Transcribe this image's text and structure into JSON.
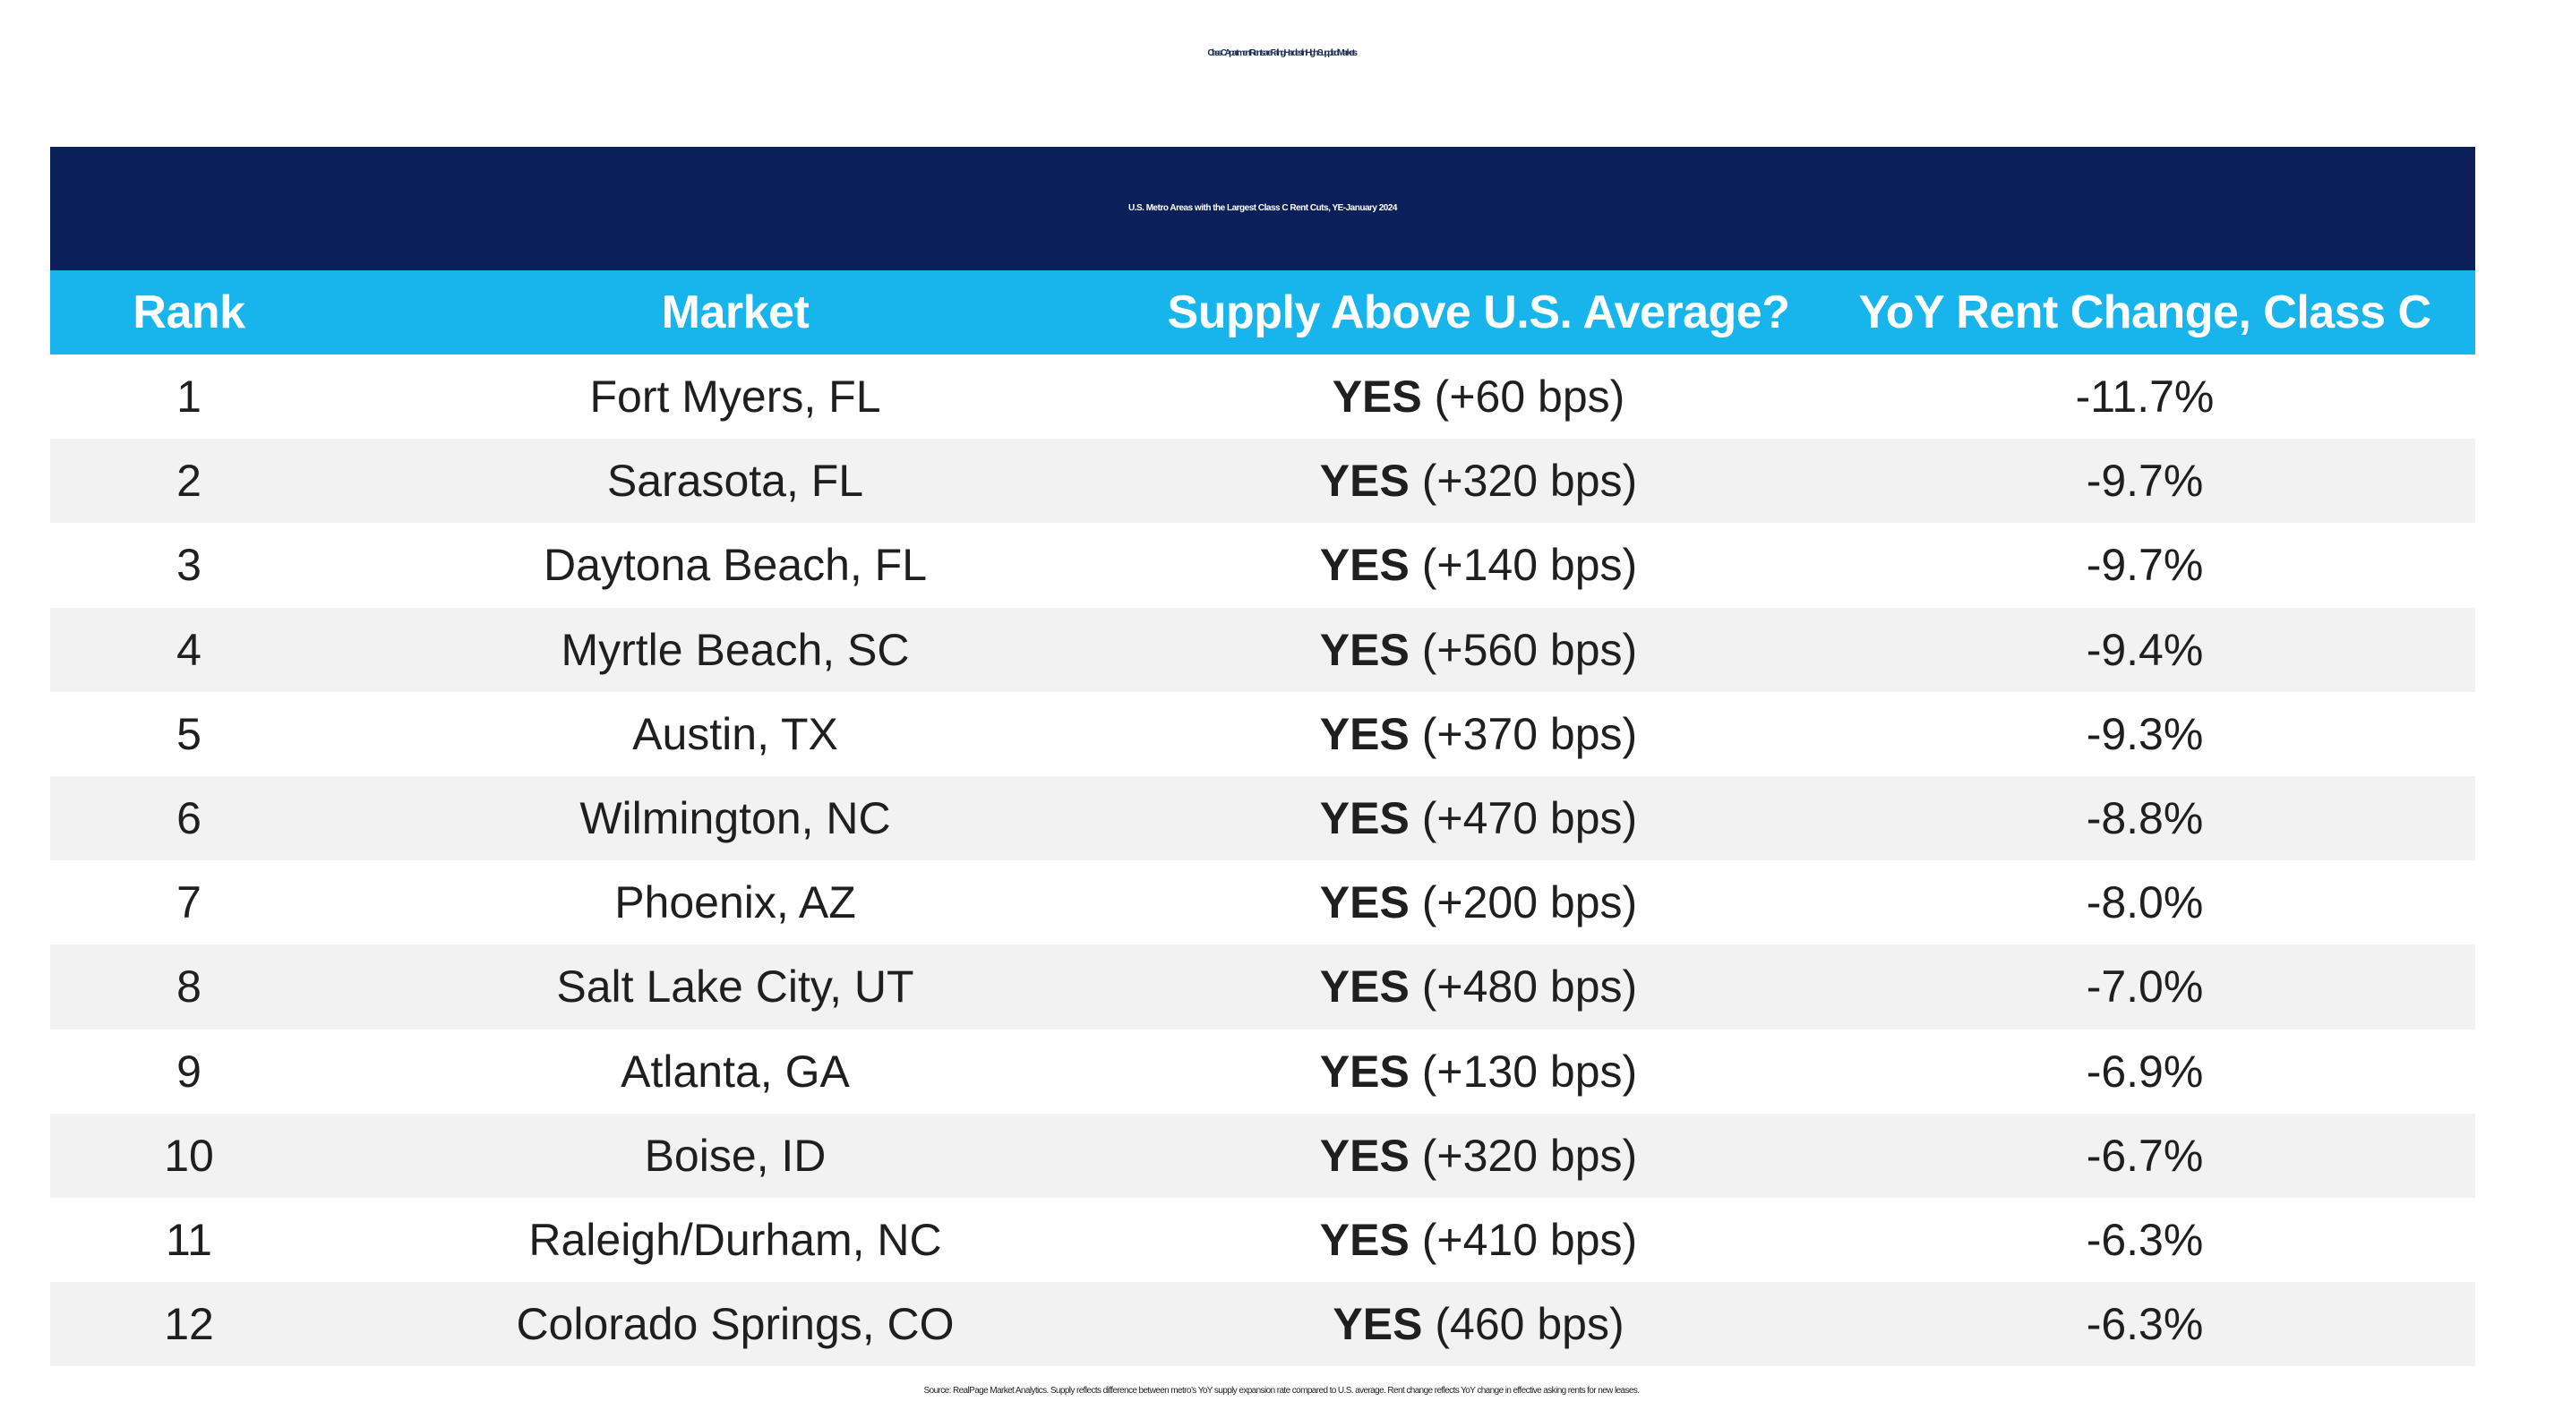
{
  "chart_data": {
    "type": "table",
    "title": "Class C Apartment Rents are Falling Hardest in High-Supplied Markets",
    "subtitle": "U.S. Metro Areas with the Largest Class C Rent Cuts, YE-January 2024",
    "columns": [
      "Rank",
      "Market",
      "Supply Above U.S. Average?",
      "YoY Rent Change, Class C"
    ],
    "rows": [
      {
        "rank": "1",
        "market": "Fort Myers, FL",
        "supply_flag": "YES",
        "supply_detail": "(+60 bps)",
        "change": "-11.7%"
      },
      {
        "rank": "2",
        "market": "Sarasota, FL",
        "supply_flag": "YES",
        "supply_detail": "(+320 bps)",
        "change": "-9.7%"
      },
      {
        "rank": "3",
        "market": "Daytona Beach, FL",
        "supply_flag": "YES",
        "supply_detail": "(+140 bps)",
        "change": "-9.7%"
      },
      {
        "rank": "4",
        "market": "Myrtle Beach, SC",
        "supply_flag": "YES",
        "supply_detail": "(+560 bps)",
        "change": "-9.4%"
      },
      {
        "rank": "5",
        "market": "Austin, TX",
        "supply_flag": "YES",
        "supply_detail": "(+370 bps)",
        "change": "-9.3%"
      },
      {
        "rank": "6",
        "market": "Wilmington, NC",
        "supply_flag": "YES",
        "supply_detail": "(+470 bps)",
        "change": "-8.8%"
      },
      {
        "rank": "7",
        "market": "Phoenix, AZ",
        "supply_flag": "YES",
        "supply_detail": "(+200 bps)",
        "change": "-8.0%"
      },
      {
        "rank": "8",
        "market": "Salt Lake City, UT",
        "supply_flag": "YES",
        "supply_detail": "(+480 bps)",
        "change": "-7.0%"
      },
      {
        "rank": "9",
        "market": "Atlanta, GA",
        "supply_flag": "YES",
        "supply_detail": "(+130 bps)",
        "change": "-6.9%"
      },
      {
        "rank": "10",
        "market": "Boise, ID",
        "supply_flag": "YES",
        "supply_detail": "(+320 bps)",
        "change": "-6.7%"
      },
      {
        "rank": "11",
        "market": "Raleigh/Durham, NC",
        "supply_flag": "YES",
        "supply_detail": "(+410 bps)",
        "change": "-6.3%"
      },
      {
        "rank": "12",
        "market": "Colorado Springs, CO",
        "supply_flag": "YES",
        "supply_detail": "(460 bps)",
        "change": "-6.3%"
      }
    ],
    "note": "Source: RealPage Market Analytics. Supply reflects difference between metro’s YoY supply expansion rate compared to U.S. average. Rent change reflects YoY change in effective asking rents for new leases."
  },
  "colors": {
    "title_text": "#1c2d55",
    "title_bar": "#0b1f5b",
    "header_bar": "#18b4ec",
    "shaded_row": "#f2f2f2"
  }
}
